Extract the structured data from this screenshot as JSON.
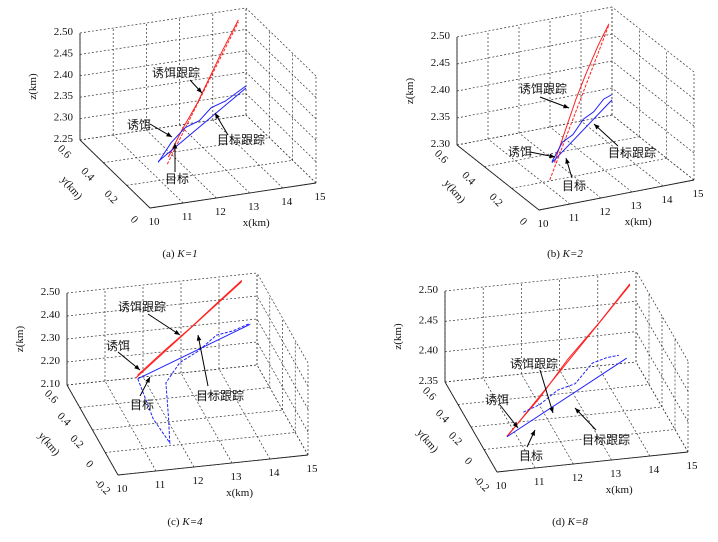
{
  "chart_data": [
    {
      "type": "line3d",
      "id": "a",
      "caption_label": "(a)",
      "caption_param": "K=1",
      "xlabel": "x(km)",
      "ylabel": "y(km)",
      "zlabel": "z(km)",
      "xlim": [
        10,
        15
      ],
      "ylim": [
        0,
        0.6
      ],
      "zlim": [
        2.25,
        2.5
      ],
      "xticks": [
        "10",
        "11",
        "12",
        "13",
        "14",
        "15"
      ],
      "yticks": [
        "0",
        "0.2",
        "0.4",
        "0.6"
      ],
      "zticks": [
        "2.25",
        "2.30",
        "2.35",
        "2.40",
        "2.45",
        "2.50"
      ],
      "series": [
        {
          "name": "诱饵",
          "color": "#ff2020",
          "dashed": true,
          "points": [
            [
              11.4,
              0.25,
              2.27
            ],
            [
              14.77,
              0.6,
              2.47
            ]
          ]
        },
        {
          "name": "诱饵跟踪",
          "color": "#ff2020",
          "points": [
            [
              11.5,
              0.27,
              2.28
            ],
            [
              12.2,
              0.35,
              2.315
            ],
            [
              12.9,
              0.42,
              2.35
            ],
            [
              13.5,
              0.48,
              2.39
            ],
            [
              14.1,
              0.54,
              2.43
            ],
            [
              14.77,
              0.6,
              2.475
            ]
          ]
        },
        {
          "name": "目标",
          "color": "#2020ff",
          "points": [
            [
              11.3,
              0.3,
              2.264
            ],
            [
              15,
              0.6,
              2.313
            ]
          ]
        },
        {
          "name": "目标跟踪",
          "color": "#2020ff",
          "points": [
            [
              11.3,
              0.3,
              2.262
            ],
            [
              11.9,
              0.36,
              2.285
            ],
            [
              12.5,
              0.41,
              2.3
            ],
            [
              13.1,
              0.46,
              2.296
            ],
            [
              13.6,
              0.5,
              2.31
            ],
            [
              14.2,
              0.55,
              2.305
            ],
            [
              15,
              0.6,
              2.318
            ]
          ]
        }
      ],
      "annotations": [
        "诱饵跟踪",
        "诱饵",
        "目标跟踪",
        "目标"
      ]
    },
    {
      "type": "line3d",
      "id": "b",
      "caption_label": "(b)",
      "caption_param": "K=2",
      "xlabel": "x(km)",
      "ylabel": "y(km)",
      "zlabel": "z(km)",
      "xlim": [
        10,
        15
      ],
      "ylim": [
        0,
        0.6
      ],
      "zlim": [
        2.3,
        2.5
      ],
      "xticks": [
        "10",
        "11",
        "12",
        "13",
        "14",
        "15"
      ],
      "yticks": [
        "0",
        "0.2",
        "0.4",
        "0.6"
      ],
      "zticks": [
        "2.30",
        "2.35",
        "2.40",
        "2.45",
        "2.50"
      ],
      "series": [
        {
          "name": "诱饵",
          "color": "#ff2020",
          "dashed": true,
          "points": [
            [
              11.23,
              0.2,
              2.302
            ],
            [
              14.9,
              0.6,
              2.468
            ]
          ]
        },
        {
          "name": "诱饵跟踪",
          "color": "#ff2020",
          "points": [
            [
              11.6,
              0.25,
              2.32
            ],
            [
              12.3,
              0.33,
              2.355
            ],
            [
              13.0,
              0.41,
              2.39
            ],
            [
              13.6,
              0.47,
              2.42
            ],
            [
              14.3,
              0.54,
              2.45
            ],
            [
              14.9,
              0.6,
              2.47
            ]
          ]
        },
        {
          "name": "目标",
          "color": "#2020ff",
          "points": [
            [
              11.74,
              0.3,
              2.308
            ],
            [
              15,
              0.6,
              2.328
            ]
          ]
        },
        {
          "name": "目标跟踪",
          "color": "#2020ff",
          "points": [
            [
              11.74,
              0.3,
              2.31
            ],
            [
              12.3,
              0.35,
              2.33
            ],
            [
              12.9,
              0.41,
              2.325
            ],
            [
              13.5,
              0.47,
              2.335
            ],
            [
              14.1,
              0.53,
              2.33
            ],
            [
              14.6,
              0.57,
              2.34
            ],
            [
              15,
              0.6,
              2.338
            ]
          ]
        }
      ],
      "annotations": [
        "诱饵跟踪",
        "诱饵",
        "目标跟踪",
        "目标"
      ]
    },
    {
      "type": "line3d",
      "id": "c",
      "caption_label": "(c)",
      "caption_param": "K=4",
      "xlabel": "x(km)",
      "ylabel": "y(km)",
      "zlabel": "z(km)",
      "xlim": [
        10,
        15
      ],
      "ylim": [
        -0.2,
        0.6
      ],
      "zlim": [
        2.1,
        2.5
      ],
      "xticks": [
        "10",
        "11",
        "12",
        "13",
        "14",
        "15"
      ],
      "yticks": [
        "-0.2",
        "0",
        "0.2",
        "0.4",
        "0.6"
      ],
      "zticks": [
        "2.10",
        "2.20",
        "2.30",
        "2.40",
        "2.50"
      ],
      "series": [
        {
          "name": "诱饵",
          "color": "#ff2020",
          "points": [
            [
              11.31,
              0.3,
              2.255
            ],
            [
              14.6,
              0.6,
              2.47
            ]
          ]
        },
        {
          "name": "诱饵跟踪",
          "color": "#ff2020",
          "points": [
            [
              11.35,
              0.3,
              2.265
            ],
            [
              12.2,
              0.38,
              2.32
            ],
            [
              13.0,
              0.45,
              2.37
            ],
            [
              13.8,
              0.53,
              2.42
            ],
            [
              14.6,
              0.6,
              2.475
            ]
          ]
        },
        {
          "name": "目标",
          "color": "#2020ff",
          "points": [
            [
              11.36,
              0.3,
              2.25
            ],
            [
              14.82,
              0.6,
              2.28
            ]
          ]
        },
        {
          "name": "目标跟踪",
          "color": "#2020ff",
          "dashed": true,
          "points": [
            [
              11.36,
              0.3,
              2.25
            ],
            [
              11.6,
              0.2,
              2.12
            ],
            [
              11.9,
              0.12,
              2.05
            ],
            [
              12.0,
              0.2,
              2.12
            ],
            [
              12.1,
              0.3,
              2.22
            ],
            [
              12.6,
              0.38,
              2.26
            ],
            [
              13.2,
              0.45,
              2.265
            ],
            [
              13.8,
              0.52,
              2.29
            ],
            [
              14.3,
              0.56,
              2.28
            ],
            [
              14.82,
              0.6,
              2.285
            ]
          ]
        }
      ],
      "annotations": [
        "诱饵跟踪",
        "诱饵",
        "目标跟踪",
        "目标"
      ]
    },
    {
      "type": "line3d",
      "id": "d",
      "caption_label": "(d)",
      "caption_param": "K=8",
      "xlabel": "x(km)",
      "ylabel": "y(km)",
      "zlabel": "z(km)",
      "xlim": [
        10,
        15
      ],
      "ylim": [
        -0.2,
        0.6
      ],
      "zlim": [
        2.35,
        2.5
      ],
      "xticks": [
        "10",
        "11",
        "12",
        "13",
        "14",
        "15"
      ],
      "yticks": [
        "-0.2",
        "0",
        "0.2",
        "0.4",
        "0.6"
      ],
      "zticks": [
        "2.35",
        "2.40",
        "2.45",
        "2.50"
      ],
      "series": [
        {
          "name": "诱饵",
          "color": "#ff2020",
          "points": [
            [
              10.6,
              0,
              2.367
            ],
            [
              14.84,
              0.6,
              2.478
            ]
          ]
        },
        {
          "name": "诱饵跟踪",
          "color": "#ff2020",
          "points": [
            [
              10.6,
              0,
              2.368
            ],
            [
              11.7,
              0.15,
              2.395
            ],
            [
              12.7,
              0.3,
              2.425
            ],
            [
              13.8,
              0.45,
              2.452
            ],
            [
              14.84,
              0.6,
              2.48
            ]
          ]
        },
        {
          "name": "目标",
          "color": "#2020ff",
          "points": [
            [
              10.6,
              0,
              2.367
            ],
            [
              14.76,
              0.6,
              2.358
            ]
          ]
        },
        {
          "name": "目标跟踪",
          "color": "#2020ff",
          "dashed": true,
          "points": [
            [
              11.2,
              0.1,
              2.385
            ],
            [
              11.8,
              0.2,
              2.375
            ],
            [
              12.4,
              0.28,
              2.38
            ],
            [
              13.0,
              0.36,
              2.372
            ],
            [
              13.6,
              0.45,
              2.385
            ],
            [
              14.1,
              0.52,
              2.378
            ],
            [
              14.5,
              0.57,
              2.37
            ]
          ]
        }
      ],
      "annotations": [
        "诱饵跟踪",
        "诱饵",
        "目标跟踪",
        "目标"
      ]
    }
  ]
}
